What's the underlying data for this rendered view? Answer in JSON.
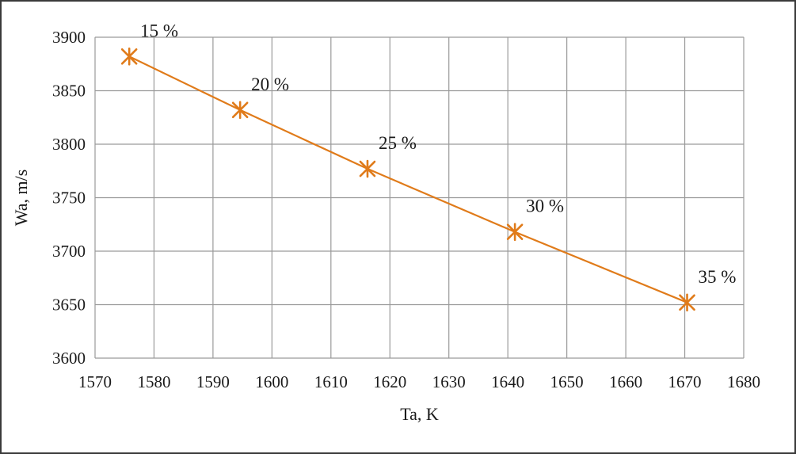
{
  "chart_data": {
    "type": "line",
    "title": "",
    "xlabel": "Ta, K",
    "ylabel": "Wa, m/s",
    "xlim": [
      1570,
      1680
    ],
    "ylim": [
      3600,
      3900
    ],
    "xticks": [
      1570,
      1580,
      1590,
      1600,
      1610,
      1620,
      1630,
      1640,
      1650,
      1660,
      1670,
      1680
    ],
    "yticks": [
      3600,
      3650,
      3700,
      3750,
      3800,
      3850,
      3900
    ],
    "grid": true,
    "legend": "none",
    "series": [
      {
        "color": "#e07b1a",
        "marker": "asterisk",
        "x": [
          1575.8,
          1594.6,
          1616.2,
          1641.2,
          1670.4
        ],
        "y": [
          3882,
          3832,
          3777,
          3718,
          3652
        ],
        "labels": [
          "15 %",
          "20 %",
          "25 %",
          "30 %",
          "35 %"
        ]
      }
    ]
  }
}
